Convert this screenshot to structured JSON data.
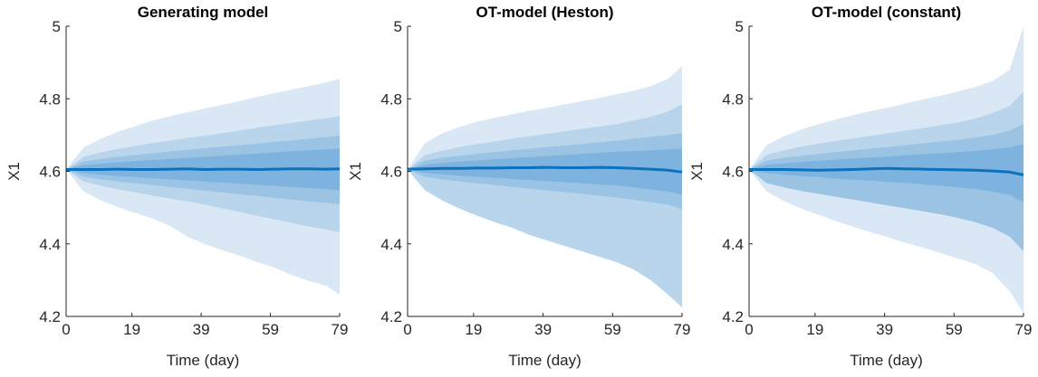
{
  "chart_data": [
    {
      "type": "area",
      "title": "Generating model",
      "xlabel": "Time (day)",
      "ylabel": "X1",
      "xlim": [
        0,
        79
      ],
      "ylim": [
        4.2,
        5
      ],
      "xticks": [
        0,
        19,
        39,
        59,
        79
      ],
      "yticks": [
        4.2,
        4.4,
        4.6,
        4.8,
        5
      ],
      "ytick_labels": [
        "4.2",
        "4.4",
        "4.6",
        "4.8",
        "5"
      ],
      "grid": false,
      "x": [
        0,
        5,
        10,
        15,
        20,
        25,
        30,
        35,
        40,
        45,
        50,
        55,
        60,
        65,
        70,
        75,
        79
      ],
      "median": [
        4.605,
        4.605,
        4.605,
        4.606,
        4.605,
        4.605,
        4.606,
        4.607,
        4.605,
        4.606,
        4.606,
        4.605,
        4.606,
        4.607,
        4.607,
        4.606,
        4.607
      ],
      "bands": [
        {
          "upper": [
            4.605,
            4.665,
            4.69,
            4.709,
            4.725,
            4.74,
            4.752,
            4.763,
            4.773,
            4.783,
            4.793,
            4.805,
            4.815,
            4.825,
            4.835,
            4.845,
            4.855
          ],
          "lower": [
            4.605,
            4.545,
            4.52,
            4.501,
            4.485,
            4.47,
            4.45,
            4.42,
            4.4,
            4.383,
            4.368,
            4.35,
            4.335,
            4.315,
            4.298,
            4.285,
            4.26
          ]
        },
        {
          "upper": [
            4.605,
            4.64,
            4.652,
            4.662,
            4.67,
            4.678,
            4.685,
            4.692,
            4.698,
            4.705,
            4.712,
            4.72,
            4.727,
            4.733,
            4.74,
            4.746,
            4.752
          ],
          "lower": [
            4.605,
            4.572,
            4.56,
            4.55,
            4.542,
            4.533,
            4.525,
            4.517,
            4.508,
            4.498,
            4.488,
            4.478,
            4.468,
            4.458,
            4.448,
            4.44,
            4.432
          ]
        },
        {
          "upper": [
            4.605,
            4.627,
            4.634,
            4.64,
            4.645,
            4.65,
            4.655,
            4.659,
            4.664,
            4.668,
            4.672,
            4.676,
            4.681,
            4.685,
            4.69,
            4.694,
            4.698
          ],
          "lower": [
            4.605,
            4.585,
            4.578,
            4.572,
            4.567,
            4.562,
            4.557,
            4.552,
            4.547,
            4.542,
            4.537,
            4.532,
            4.527,
            4.522,
            4.517,
            4.513,
            4.509
          ]
        },
        {
          "upper": [
            4.605,
            4.617,
            4.621,
            4.625,
            4.628,
            4.631,
            4.634,
            4.637,
            4.64,
            4.643,
            4.646,
            4.649,
            4.652,
            4.655,
            4.658,
            4.66,
            4.663
          ],
          "lower": [
            4.605,
            4.595,
            4.591,
            4.587,
            4.584,
            4.581,
            4.578,
            4.575,
            4.572,
            4.569,
            4.566,
            4.563,
            4.56,
            4.557,
            4.554,
            4.551,
            4.548
          ]
        }
      ]
    },
    {
      "type": "area",
      "title": "OT-model (Heston)",
      "xlabel": "Time (day)",
      "ylabel": "X1",
      "xlim": [
        0,
        79
      ],
      "ylim": [
        4.2,
        5
      ],
      "xticks": [
        0,
        19,
        39,
        59,
        79
      ],
      "yticks": [
        4.2,
        4.4,
        4.6,
        4.8,
        5
      ],
      "ytick_labels": [
        "4.2",
        "4.4",
        "4.6",
        "4.8",
        "5"
      ],
      "grid": false,
      "x": [
        0,
        5,
        10,
        15,
        20,
        25,
        30,
        35,
        40,
        45,
        50,
        55,
        60,
        65,
        70,
        75,
        79
      ],
      "median": [
        4.606,
        4.607,
        4.608,
        4.608,
        4.609,
        4.609,
        4.61,
        4.61,
        4.611,
        4.61,
        4.61,
        4.611,
        4.61,
        4.608,
        4.606,
        4.603,
        4.598
      ],
      "bands": [
        {
          "upper": [
            4.605,
            4.678,
            4.705,
            4.722,
            4.737,
            4.747,
            4.757,
            4.767,
            4.775,
            4.784,
            4.793,
            4.802,
            4.812,
            4.822,
            4.835,
            4.855,
            4.89
          ],
          "lower": [
            4.605,
            4.548,
            4.52,
            4.497,
            4.478,
            4.46,
            4.445,
            4.425,
            4.41,
            4.395,
            4.38,
            4.365,
            4.35,
            4.33,
            4.3,
            4.26,
            4.225
          ]
        },
        {
          "upper": [
            4.605,
            4.645,
            4.657,
            4.667,
            4.675,
            4.682,
            4.69,
            4.697,
            4.703,
            4.71,
            4.717,
            4.723,
            4.73,
            4.74,
            4.75,
            4.765,
            4.785
          ]
        },
        {
          "upper": [
            4.605,
            4.63,
            4.637,
            4.643,
            4.648,
            4.653,
            4.658,
            4.662,
            4.667,
            4.671,
            4.675,
            4.68,
            4.684,
            4.69,
            4.695,
            4.7,
            4.705
          ],
          "lower": [
            4.605,
            4.585,
            4.578,
            4.572,
            4.567,
            4.562,
            4.557,
            4.552,
            4.547,
            4.543,
            4.538,
            4.533,
            4.528,
            4.522,
            4.515,
            4.508,
            4.495
          ]
        },
        {
          "upper": [
            4.605,
            4.618,
            4.623,
            4.627,
            4.63,
            4.633,
            4.636,
            4.639,
            4.642,
            4.645,
            4.648,
            4.651,
            4.654,
            4.656,
            4.658,
            4.66,
            4.662
          ],
          "lower": [
            4.605,
            4.596,
            4.592,
            4.588,
            4.585,
            4.582,
            4.579,
            4.576,
            4.573,
            4.57,
            4.567,
            4.564,
            4.561,
            4.556,
            4.55,
            4.544,
            4.535
          ]
        }
      ]
    },
    {
      "type": "area",
      "title": "OT-model (constant)",
      "xlabel": "Time (day)",
      "ylabel": "X1",
      "xlim": [
        0,
        79
      ],
      "ylim": [
        4.2,
        5
      ],
      "xticks": [
        0,
        19,
        39,
        59,
        79
      ],
      "yticks": [
        4.2,
        4.4,
        4.6,
        4.8,
        5
      ],
      "ytick_labels": [
        "4.2",
        "4.4",
        "4.6",
        "4.8",
        "5"
      ],
      "grid": false,
      "x": [
        0,
        5,
        10,
        15,
        20,
        25,
        30,
        35,
        40,
        45,
        50,
        55,
        60,
        65,
        70,
        75,
        79
      ],
      "median": [
        4.605,
        4.605,
        4.605,
        4.604,
        4.603,
        4.604,
        4.605,
        4.607,
        4.608,
        4.607,
        4.606,
        4.605,
        4.604,
        4.603,
        4.601,
        4.598,
        4.59
      ],
      "bands": [
        {
          "upper": [
            4.605,
            4.672,
            4.697,
            4.715,
            4.73,
            4.743,
            4.755,
            4.766,
            4.776,
            4.787,
            4.798,
            4.808,
            4.82,
            4.832,
            4.848,
            4.88,
            5.0
          ],
          "lower": [
            4.605,
            4.545,
            4.518,
            4.497,
            4.48,
            4.463,
            4.447,
            4.432,
            4.418,
            4.403,
            4.39,
            4.375,
            4.36,
            4.345,
            4.32,
            4.27,
            4.21
          ]
        },
        {
          "upper": [
            4.605,
            4.645,
            4.658,
            4.668,
            4.676,
            4.684,
            4.691,
            4.698,
            4.705,
            4.712,
            4.719,
            4.727,
            4.735,
            4.745,
            4.76,
            4.78,
            4.82
          ],
          "lower": [
            4.605,
            4.568,
            4.556,
            4.546,
            4.538,
            4.53,
            4.522,
            4.514,
            4.506,
            4.498,
            4.49,
            4.482,
            4.472,
            4.46,
            4.445,
            4.42,
            4.38
          ]
        },
        {
          "upper": [
            4.605,
            4.63,
            4.637,
            4.643,
            4.648,
            4.653,
            4.658,
            4.663,
            4.667,
            4.672,
            4.677,
            4.682,
            4.687,
            4.693,
            4.7,
            4.712,
            4.73
          ]
        },
        {
          "upper": [
            4.605,
            4.618,
            4.622,
            4.626,
            4.629,
            4.632,
            4.635,
            4.638,
            4.641,
            4.644,
            4.647,
            4.65,
            4.653,
            4.656,
            4.66,
            4.666,
            4.675
          ],
          "lower": [
            4.605,
            4.595,
            4.591,
            4.587,
            4.584,
            4.58,
            4.577,
            4.574,
            4.571,
            4.568,
            4.564,
            4.56,
            4.556,
            4.551,
            4.545,
            4.535,
            4.515
          ]
        }
      ]
    }
  ],
  "colors": {
    "band_outer": "#d9e8f4",
    "band_2": "#b9d5ec",
    "band_3": "#9ac3e4",
    "band_inner": "#7db3de",
    "median_line": "#0a72bd",
    "axis": "#262626"
  }
}
